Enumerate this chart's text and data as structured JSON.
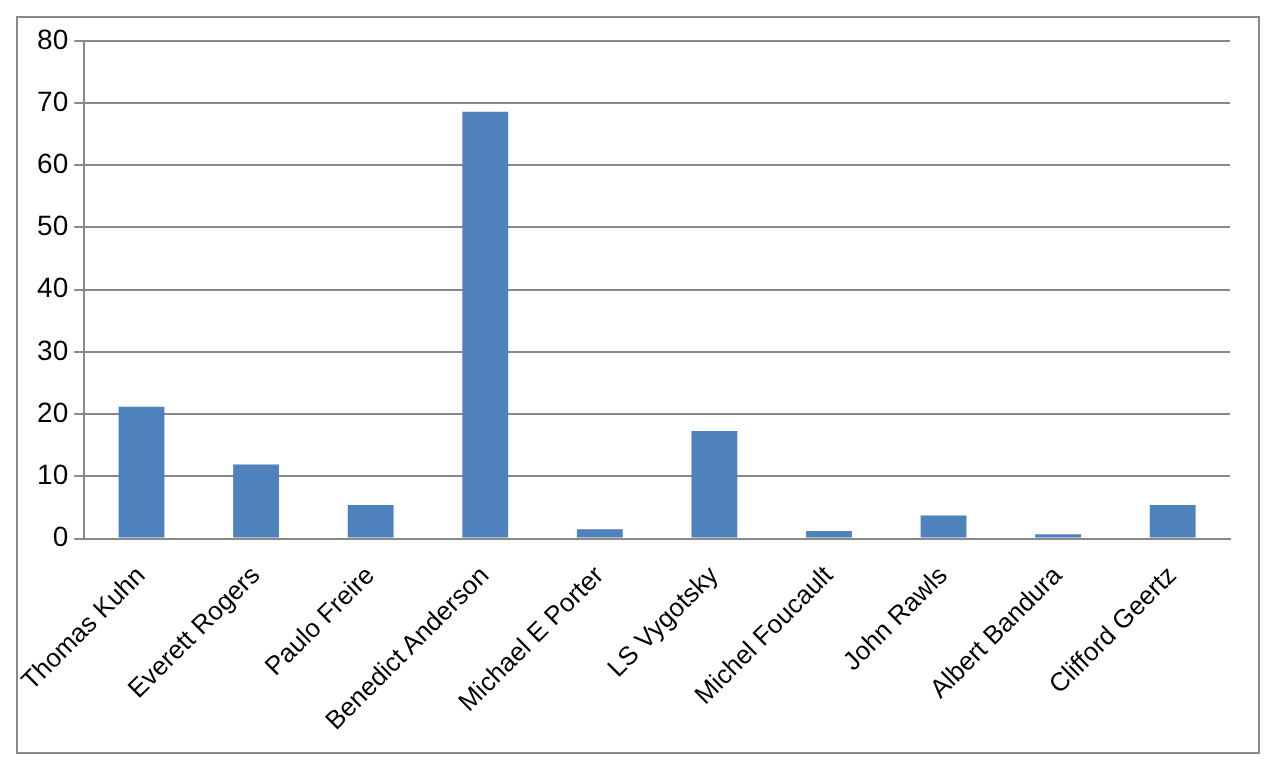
{
  "chart_data": {
    "type": "bar",
    "categories": [
      "Thomas Kuhn",
      "Everett Rogers",
      "Paulo Freire",
      "Benedict Anderson",
      "Michael E Porter",
      "LS Vygotsky",
      "Michel Foucault",
      "John Rawls",
      "Albert Bandura",
      "Clifford Geertz"
    ],
    "values": [
      21.2,
      11.9,
      5.4,
      68.6,
      1.5,
      17.3,
      1.2,
      3.7,
      0.7,
      5.4
    ],
    "color": "#4f81bd",
    "ylim": [
      0,
      80
    ],
    "yticks": [
      0,
      10,
      20,
      30,
      40,
      50,
      60,
      70,
      80
    ],
    "grid": "y",
    "legend": false
  }
}
